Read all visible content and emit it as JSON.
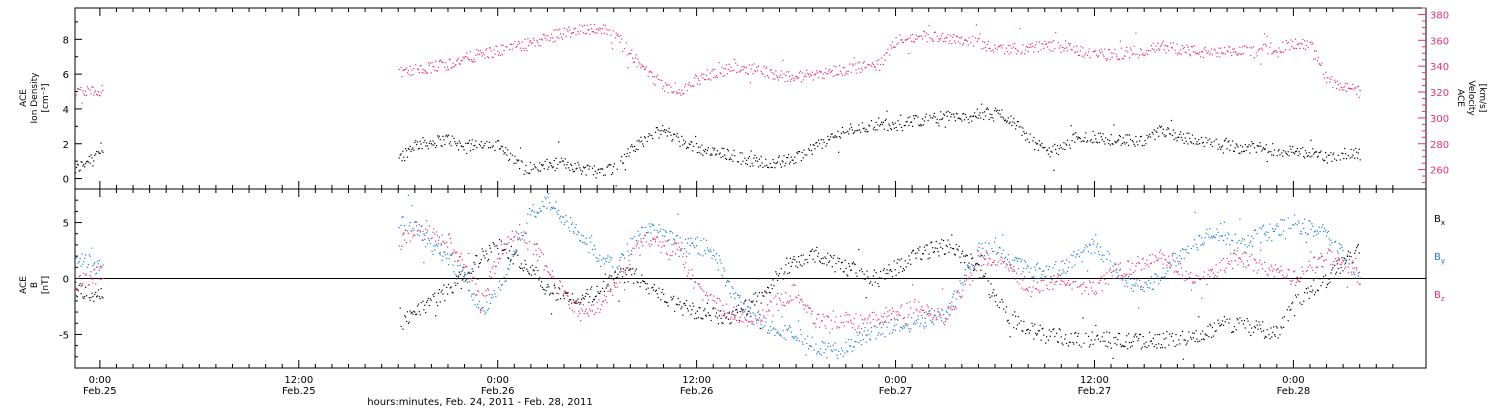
{
  "colors": {
    "axis": "#000000",
    "density": "#000000",
    "velocity": "#e8336a",
    "bx": "#000000",
    "by": "#1a7be0",
    "bz": "#e8336a"
  },
  "chart_data": [
    {
      "type": "scatter",
      "panel": "top",
      "ylabel_left": [
        "ACE",
        "Ion Density",
        "[cm⁻³]"
      ],
      "ylabel_right": [
        "ACE",
        "Velocity",
        "[km/s]"
      ],
      "ylim_left": [
        -0.6,
        9.8
      ],
      "yticks_left": [
        0,
        2,
        4,
        6,
        8
      ],
      "ylim_right": [
        245,
        385
      ],
      "yticks_right": [
        260,
        280,
        300,
        320,
        340,
        360,
        380
      ],
      "x_unit": "hours since Feb.25 00:00",
      "xlim": [
        -1.5,
        80
      ],
      "series": [
        {
          "axis": "left",
          "x": [
            -1.5,
            0,
            18,
            19,
            20,
            21,
            22,
            23,
            24,
            25,
            26,
            27,
            28,
            29,
            30,
            31,
            32,
            33,
            34,
            35,
            36,
            37,
            38,
            39,
            40,
            41,
            42,
            43,
            44,
            45,
            46,
            47,
            48,
            49,
            50,
            51,
            52,
            53,
            54,
            55,
            56,
            57,
            58,
            59,
            60,
            61,
            62,
            63,
            64,
            65,
            66,
            67,
            68,
            69,
            70,
            71,
            72,
            73,
            74,
            75,
            76
          ],
          "values": [
            0.5,
            1.7,
            1.2,
            2.0,
            2.1,
            2.3,
            1.8,
            2.1,
            1.9,
            1.0,
            0.6,
            0.8,
            0.9,
            0.6,
            0.5,
            0.6,
            1.6,
            2.4,
            2.8,
            2.2,
            1.8,
            1.5,
            1.4,
            1.1,
            1.0,
            1.0,
            1.2,
            1.8,
            2.3,
            2.8,
            3.0,
            3.2,
            3.0,
            3.3,
            3.5,
            3.6,
            3.5,
            3.7,
            3.8,
            3.4,
            2.3,
            1.6,
            1.7,
            2.5,
            2.4,
            2.3,
            2.2,
            2.1,
            2.8,
            2.5,
            2.2,
            2.0,
            1.9,
            1.8,
            1.8,
            1.7,
            1.6,
            1.5,
            1.2,
            1.5,
            1.4
          ]
        },
        {
          "axis": "right",
          "x": [
            -1.5,
            0,
            18,
            19,
            20,
            21,
            22,
            23,
            24,
            25,
            26,
            27,
            28,
            29,
            30,
            31,
            32,
            33,
            34,
            35,
            36,
            37,
            38,
            39,
            40,
            41,
            42,
            43,
            44,
            45,
            46,
            47,
            48,
            49,
            50,
            51,
            52,
            53,
            54,
            55,
            56,
            57,
            58,
            59,
            60,
            61,
            62,
            63,
            64,
            65,
            66,
            67,
            68,
            69,
            70,
            71,
            72,
            73,
            74,
            75,
            76
          ],
          "values": [
            320,
            322,
            335,
            337,
            340,
            342,
            346,
            350,
            352,
            355,
            358,
            362,
            366,
            369,
            370,
            366,
            350,
            335,
            325,
            322,
            330,
            335,
            338,
            339,
            337,
            333,
            332,
            334,
            336,
            338,
            340,
            341,
            360,
            362,
            364,
            363,
            361,
            358,
            355,
            354,
            354,
            356,
            357,
            352,
            350,
            349,
            351,
            353,
            356,
            354,
            352,
            350,
            351,
            352,
            353,
            355,
            357,
            358,
            330,
            325,
            320
          ]
        }
      ]
    },
    {
      "type": "scatter",
      "panel": "bottom",
      "ylabel_left": [
        "ACE",
        "B",
        "[nT]"
      ],
      "legend": [
        "Bx",
        "By",
        "Bz"
      ],
      "ylim_left": [
        -8,
        8
      ],
      "yticks_left": [
        -5,
        0,
        5
      ],
      "zero_line": true,
      "x_unit": "hours since Feb.25 00:00",
      "xlim": [
        -1.5,
        80
      ],
      "series": [
        {
          "name": "Bx",
          "x": [
            -1.5,
            0,
            18,
            19,
            20,
            21,
            22,
            23,
            24,
            25,
            26,
            27,
            28,
            29,
            30,
            31,
            32,
            33,
            34,
            35,
            36,
            37,
            38,
            39,
            40,
            41,
            42,
            43,
            44,
            45,
            46,
            47,
            48,
            49,
            50,
            51,
            52,
            53,
            54,
            55,
            56,
            57,
            58,
            59,
            60,
            61,
            62,
            63,
            64,
            65,
            66,
            67,
            68,
            69,
            70,
            71,
            72,
            73,
            74,
            75,
            76
          ],
          "values": [
            -1.0,
            -1.5,
            -4.0,
            -3.0,
            -2.0,
            -1.0,
            0.5,
            2.0,
            3.0,
            2.0,
            1.0,
            -1.0,
            -1.5,
            -2.0,
            -1.0,
            0.0,
            0.5,
            -0.5,
            -1.5,
            -2.5,
            -3.0,
            -3.2,
            -3.5,
            -2.5,
            -1.5,
            0.5,
            1.5,
            2.0,
            1.5,
            1.0,
            0.5,
            0.0,
            1.0,
            2.0,
            2.5,
            3.0,
            2.0,
            1.0,
            -2.0,
            -3.5,
            -4.5,
            -5.0,
            -5.2,
            -5.4,
            -5.3,
            -5.5,
            -5.6,
            -5.5,
            -5.4,
            -5.5,
            -5.3,
            -4.5,
            -4.0,
            -4.2,
            -4.5,
            -4.8,
            -2.0,
            -1.0,
            0.0,
            1.5,
            2.5
          ]
        },
        {
          "name": "By",
          "x": [
            -1.5,
            0,
            18,
            19,
            20,
            21,
            22,
            23,
            24,
            25,
            26,
            27,
            28,
            29,
            30,
            31,
            32,
            33,
            34,
            35,
            36,
            37,
            38,
            39,
            40,
            41,
            42,
            43,
            44,
            45,
            46,
            47,
            48,
            49,
            50,
            51,
            52,
            53,
            54,
            55,
            56,
            57,
            58,
            59,
            60,
            61,
            62,
            63,
            64,
            65,
            66,
            67,
            68,
            69,
            70,
            71,
            72,
            73,
            74,
            75,
            76
          ],
          "values": [
            2.0,
            1.0,
            5.0,
            4.5,
            3.0,
            2.0,
            0.0,
            -3.0,
            -1.0,
            2.5,
            6.0,
            7.0,
            5.5,
            4.0,
            2.0,
            1.0,
            3.0,
            4.5,
            4.0,
            3.0,
            3.0,
            2.5,
            -1.0,
            -3.0,
            -4.0,
            -4.5,
            -5.0,
            -6.0,
            -6.5,
            -6.2,
            -5.0,
            -4.5,
            -4.2,
            -4.0,
            -3.5,
            -3.0,
            0.0,
            2.5,
            3.0,
            1.5,
            1.0,
            0.5,
            1.0,
            2.0,
            3.0,
            1.5,
            -0.5,
            -1.0,
            0.5,
            2.0,
            3.0,
            4.0,
            3.5,
            3.0,
            4.0,
            4.5,
            5.0,
            4.5,
            4.0,
            2.0,
            0.0
          ]
        },
        {
          "name": "Bz",
          "x": [
            -1.5,
            0,
            18,
            19,
            20,
            21,
            22,
            23,
            24,
            25,
            26,
            27,
            28,
            29,
            30,
            31,
            32,
            33,
            34,
            35,
            36,
            37,
            38,
            39,
            40,
            41,
            42,
            43,
            44,
            45,
            46,
            47,
            48,
            49,
            50,
            51,
            52,
            53,
            54,
            55,
            56,
            57,
            58,
            59,
            60,
            61,
            62,
            63,
            64,
            65,
            66,
            67,
            68,
            69,
            70,
            71,
            72,
            73,
            74,
            75,
            76
          ],
          "values": [
            -0.5,
            0.5,
            3.0,
            4.5,
            4.0,
            3.5,
            1.0,
            -2.0,
            2.0,
            4.0,
            3.0,
            1.0,
            -1.5,
            -3.0,
            -2.5,
            -0.5,
            2.0,
            3.5,
            3.0,
            2.5,
            -1.0,
            -2.0,
            -3.0,
            -3.5,
            -3.0,
            -2.0,
            -1.0,
            -3.5,
            -4.0,
            -3.5,
            -4.0,
            -3.5,
            -3.0,
            -2.5,
            -3.0,
            -3.5,
            -1.0,
            1.5,
            2.0,
            1.0,
            -1.0,
            -0.5,
            0.0,
            -0.5,
            -1.0,
            0.5,
            1.0,
            1.5,
            2.0,
            1.0,
            -0.5,
            0.5,
            1.5,
            2.0,
            1.0,
            0.5,
            0.0,
            1.0,
            2.0,
            1.5,
            0.0
          ]
        }
      ]
    }
  ],
  "x_axis": {
    "xlabel": "hours:minutes, Feb. 24, 2011 - Feb. 28, 2011",
    "ticks": [
      {
        "x": 0,
        "time": "0:00",
        "date": "Feb.25"
      },
      {
        "x": 12,
        "time": "12:00",
        "date": "Feb.25"
      },
      {
        "x": 24,
        "time": "0:00",
        "date": "Feb.26"
      },
      {
        "x": 36,
        "time": "12:00",
        "date": "Feb.26"
      },
      {
        "x": 48,
        "time": "0:00",
        "date": "Feb.27"
      },
      {
        "x": 60,
        "time": "12:00",
        "date": "Feb.27"
      },
      {
        "x": 72,
        "time": "0:00",
        "date": "Feb.28"
      }
    ]
  }
}
